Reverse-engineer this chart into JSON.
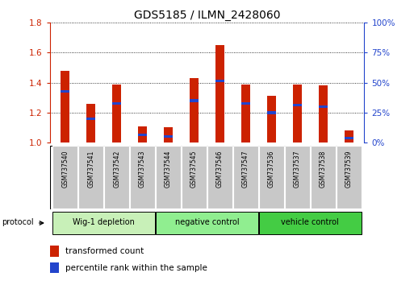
{
  "title": "GDS5185 / ILMN_2428060",
  "samples": [
    "GSM737540",
    "GSM737541",
    "GSM737542",
    "GSM737543",
    "GSM737544",
    "GSM737545",
    "GSM737546",
    "GSM737547",
    "GSM737536",
    "GSM737537",
    "GSM737538",
    "GSM737539"
  ],
  "red_values": [
    1.48,
    1.26,
    1.39,
    1.11,
    1.1,
    1.43,
    1.65,
    1.39,
    1.31,
    1.39,
    1.38,
    1.08
  ],
  "blue_values": [
    1.34,
    1.16,
    1.26,
    1.05,
    1.04,
    1.28,
    1.41,
    1.26,
    1.2,
    1.25,
    1.24,
    1.03
  ],
  "ylim_left": [
    1.0,
    1.8
  ],
  "ylim_right": [
    0,
    100
  ],
  "yticks_left": [
    1.0,
    1.2,
    1.4,
    1.6,
    1.8
  ],
  "yticks_right": [
    0,
    25,
    50,
    75,
    100
  ],
  "ytick_labels_right": [
    "0%",
    "25%",
    "50%",
    "75%",
    "100%"
  ],
  "groups": [
    {
      "label": "Wig-1 depletion",
      "indices": [
        0,
        1,
        2,
        3
      ],
      "color": "#c8f0b8"
    },
    {
      "label": "negative control",
      "indices": [
        4,
        5,
        6,
        7
      ],
      "color": "#90ee90"
    },
    {
      "label": "vehicle control",
      "indices": [
        8,
        9,
        10,
        11
      ],
      "color": "#44cc44"
    }
  ],
  "bar_color": "#cc2200",
  "blue_color": "#2244cc",
  "bar_width": 0.35,
  "protocol_label": "protocol",
  "legend_red": "transformed count",
  "legend_blue": "percentile rank within the sample",
  "title_fontsize": 10,
  "axis_color_left": "#cc2200",
  "axis_color_right": "#2244cc",
  "background_plot": "#ffffff",
  "tick_box_color": "#c8c8c8",
  "blue_bar_height": 0.018
}
